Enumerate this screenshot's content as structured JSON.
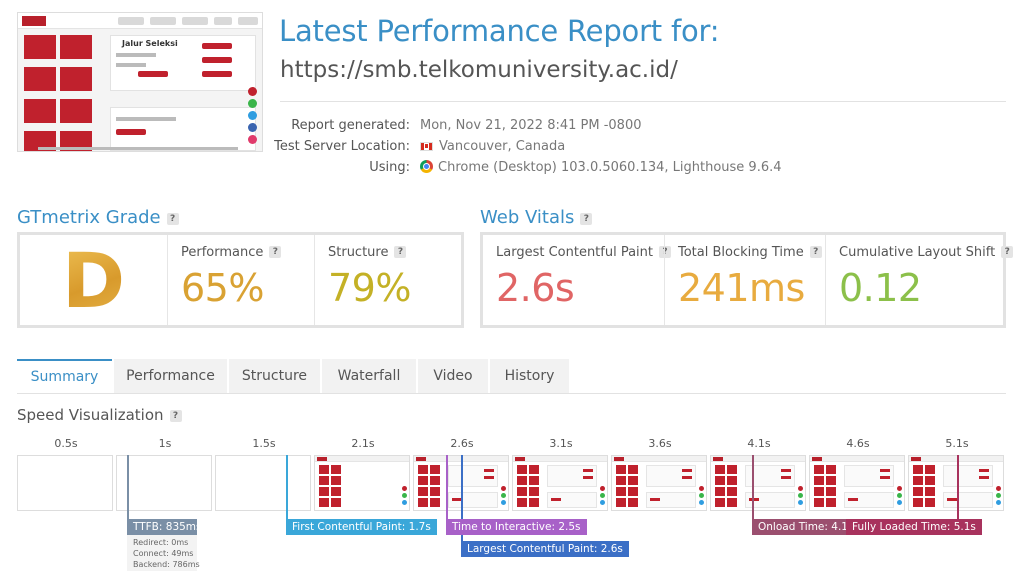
{
  "header": {
    "title": "Latest Performance Report for:",
    "url": "https://smb.telkomuniversity.ac.id/"
  },
  "thumbnail": {
    "headline": "Jalur Seleksi"
  },
  "meta": {
    "report_generated_label": "Report generated:",
    "report_generated_value": "Mon, Nov 21, 2022 8:41 PM -0800",
    "location_label": "Test Server Location:",
    "location_value": "Vancouver, Canada",
    "using_label": "Using:",
    "using_value": "Chrome (Desktop) 103.0.5060.134, Lighthouse 9.6.4"
  },
  "grade": {
    "heading": "GTmetrix Grade",
    "letter": "D",
    "performance_label": "Performance",
    "performance_value": "65%",
    "structure_label": "Structure",
    "structure_value": "79%",
    "colors": {
      "grade": "#d9a233",
      "performance": "#d9a233",
      "structure": "#c4b126"
    }
  },
  "web_vitals": {
    "heading": "Web Vitals",
    "lcp_label": "Largest Contentful Paint",
    "lcp_value": "2.6s",
    "tbt_label": "Total Blocking Time",
    "tbt_value": "241ms",
    "cls_label": "Cumulative Layout Shift",
    "cls_value": "0.12",
    "colors": {
      "lcp": "#e06565",
      "tbt": "#e8ab3f",
      "cls": "#8cc04a"
    }
  },
  "tabs": [
    {
      "label": "Summary",
      "active": true
    },
    {
      "label": "Performance"
    },
    {
      "label": "Structure"
    },
    {
      "label": "Waterfall"
    },
    {
      "label": "Video"
    },
    {
      "label": "History"
    }
  ],
  "speed": {
    "heading": "Speed Visualization",
    "ticks": [
      "0.5s",
      "1s",
      "1.5s",
      "2.1s",
      "2.6s",
      "3.1s",
      "3.6s",
      "4.1s",
      "4.6s",
      "5.1s"
    ],
    "ttfb": "TTFB: 835ms",
    "redirect": "Redirect: 0ms",
    "connect": "Connect: 49ms",
    "backend": "Backend: 786ms",
    "fcp": "First Contentful Paint: 1.7s",
    "tti": "Time to Interactive: 2.5s",
    "lcp": "Largest Contentful Paint: 2.6s",
    "onload": "Onload Time: 4.1s",
    "fully_loaded": "Fully Loaded Time: 5.1s",
    "colors": {
      "ttfb": "#7a8fa6",
      "fcp": "#3aa7d9",
      "tti": "#a861c8",
      "lcp": "#3b6fc6",
      "onload": "#9b4f6f",
      "fully": "#a8325d"
    }
  }
}
